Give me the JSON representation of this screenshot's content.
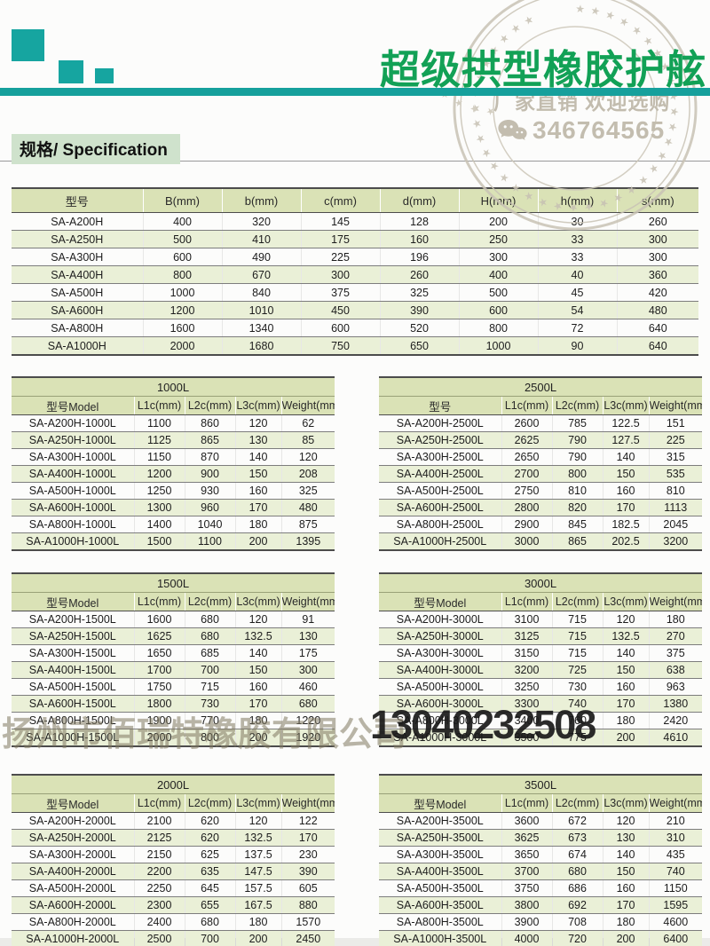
{
  "header": {
    "title": "超级拱型橡胶护舷",
    "slogan": "厂家直销 欢迎选购",
    "wechat_number": "346764565"
  },
  "section": {
    "label": "规格/ Specification"
  },
  "watermark": {
    "company": "扬州市佰瑞特橡胶有限公司",
    "phone": "13040232508"
  },
  "stamp": {
    "stars_outer": "★★★★★★★★★★★★★★★★★★★★★★★★★★★★★★★★★★★★★★",
    "stars_inner": "★★★★★★★★★★★★★★"
  },
  "colors": {
    "teal_accent": "#16a09c",
    "title_green": "#12a156",
    "table_header_bg": "#dae2b6",
    "row_alt_bg": "#eaf0d7",
    "section_bg": "#cfe2cc",
    "stamp_gray": "#c9c3b5"
  },
  "main_table": {
    "columns": [
      "型号",
      "B(mm)",
      "b(mm)",
      "c(mm)",
      "d(mm)",
      "H(mm)",
      "h(mm)",
      "s(mm)"
    ],
    "rows": [
      [
        "SA-A200H",
        "400",
        "320",
        "145",
        "128",
        "200",
        "30",
        "260"
      ],
      [
        "SA-A250H",
        "500",
        "410",
        "175",
        "160",
        "250",
        "33",
        "300"
      ],
      [
        "SA-A300H",
        "600",
        "490",
        "225",
        "196",
        "300",
        "33",
        "300"
      ],
      [
        "SA-A400H",
        "800",
        "670",
        "300",
        "260",
        "400",
        "40",
        "360"
      ],
      [
        "SA-A500H",
        "1000",
        "840",
        "375",
        "325",
        "500",
        "45",
        "420"
      ],
      [
        "SA-A600H",
        "1200",
        "1010",
        "450",
        "390",
        "600",
        "54",
        "480"
      ],
      [
        "SA-A800H",
        "1600",
        "1340",
        "600",
        "520",
        "800",
        "72",
        "640"
      ],
      [
        "SA-A1000H",
        "2000",
        "1680",
        "750",
        "650",
        "1000",
        "90",
        "640"
      ]
    ]
  },
  "sub_tables": [
    {
      "title": "1000L",
      "columns": [
        "型号Model",
        "L1c(mm)",
        "L2c(mm)",
        "L3c(mm)",
        "Weight(mm)"
      ],
      "rows": [
        [
          "SA-A200H-1000L",
          "1100",
          "860",
          "120",
          "62"
        ],
        [
          "SA-A250H-1000L",
          "1125",
          "865",
          "130",
          "85"
        ],
        [
          "SA-A300H-1000L",
          "1150",
          "870",
          "140",
          "120"
        ],
        [
          "SA-A400H-1000L",
          "1200",
          "900",
          "150",
          "208"
        ],
        [
          "SA-A500H-1000L",
          "1250",
          "930",
          "160",
          "325"
        ],
        [
          "SA-A600H-1000L",
          "1300",
          "960",
          "170",
          "480"
        ],
        [
          "SA-A800H-1000L",
          "1400",
          "1040",
          "180",
          "875"
        ],
        [
          "SA-A1000H-1000L",
          "1500",
          "1100",
          "200",
          "1395"
        ]
      ]
    },
    {
      "title": "2500L",
      "columns": [
        "型号",
        "L1c(mm)",
        "L2c(mm)",
        "L3c(mm)",
        "Weight(mm)"
      ],
      "rows": [
        [
          "SA-A200H-2500L",
          "2600",
          "785",
          "122.5",
          "151"
        ],
        [
          "SA-A250H-2500L",
          "2625",
          "790",
          "127.5",
          "225"
        ],
        [
          "SA-A300H-2500L",
          "2650",
          "790",
          "140",
          "315"
        ],
        [
          "SA-A400H-2500L",
          "2700",
          "800",
          "150",
          "535"
        ],
        [
          "SA-A500H-2500L",
          "2750",
          "810",
          "160",
          "810"
        ],
        [
          "SA-A600H-2500L",
          "2800",
          "820",
          "170",
          "1113"
        ],
        [
          "SA-A800H-2500L",
          "2900",
          "845",
          "182.5",
          "2045"
        ],
        [
          "SA-A1000H-2500L",
          "3000",
          "865",
          "202.5",
          "3200"
        ]
      ]
    },
    {
      "title": "1500L",
      "columns": [
        "型号Model",
        "L1c(mm)",
        "L2c(mm)",
        "L3c(mm)",
        "Weight(mm)"
      ],
      "rows": [
        [
          "SA-A200H-1500L",
          "1600",
          "680",
          "120",
          "91"
        ],
        [
          "SA-A250H-1500L",
          "1625",
          "680",
          "132.5",
          "130"
        ],
        [
          "SA-A300H-1500L",
          "1650",
          "685",
          "140",
          "175"
        ],
        [
          "SA-A400H-1500L",
          "1700",
          "700",
          "150",
          "300"
        ],
        [
          "SA-A500H-1500L",
          "1750",
          "715",
          "160",
          "460"
        ],
        [
          "SA-A600H-1500L",
          "1800",
          "730",
          "170",
          "680"
        ],
        [
          "SA-A800H-1500L",
          "1900",
          "770",
          "180",
          "1220"
        ],
        [
          "SA-A1000H-1500L",
          "2000",
          "800",
          "200",
          "1920"
        ]
      ]
    },
    {
      "title": "3000L",
      "columns": [
        "型号Model",
        "L1c(mm)",
        "L2c(mm)",
        "L3c(mm)",
        "Weight(mm)"
      ],
      "rows": [
        [
          "SA-A200H-3000L",
          "3100",
          "715",
          "120",
          "180"
        ],
        [
          "SA-A250H-3000L",
          "3125",
          "715",
          "132.5",
          "270"
        ],
        [
          "SA-A300H-3000L",
          "3150",
          "715",
          "140",
          "375"
        ],
        [
          "SA-A400H-3000L",
          "3200",
          "725",
          "150",
          "638"
        ],
        [
          "SA-A500H-3000L",
          "3250",
          "730",
          "160",
          "963"
        ],
        [
          "SA-A600H-3000L",
          "3300",
          "740",
          "170",
          "1380"
        ],
        [
          "SA-A800H-3000L",
          "3400",
          "760",
          "180",
          "2420"
        ],
        [
          "SA-A1000H-3000L",
          "3500",
          "775",
          "200",
          "4610"
        ]
      ]
    },
    {
      "title": "2000L",
      "columns": [
        "型号Model",
        "L1c(mm)",
        "L2c(mm)",
        "L3c(mm)",
        "Weight(mm)"
      ],
      "rows": [
        [
          "SA-A200H-2000L",
          "2100",
          "620",
          "120",
          "122"
        ],
        [
          "SA-A250H-2000L",
          "2125",
          "620",
          "132.5",
          "170"
        ],
        [
          "SA-A300H-2000L",
          "2150",
          "625",
          "137.5",
          "230"
        ],
        [
          "SA-A400H-2000L",
          "2200",
          "635",
          "147.5",
          "390"
        ],
        [
          "SA-A500H-2000L",
          "2250",
          "645",
          "157.5",
          "605"
        ],
        [
          "SA-A600H-2000L",
          "2300",
          "655",
          "167.5",
          "880"
        ],
        [
          "SA-A800H-2000L",
          "2400",
          "680",
          "180",
          "1570"
        ],
        [
          "SA-A1000H-2000L",
          "2500",
          "700",
          "200",
          "2450"
        ]
      ]
    },
    {
      "title": "3500L",
      "columns": [
        "型号Model",
        "L1c(mm)",
        "L2c(mm)",
        "L3c(mm)",
        "Weight(mm)"
      ],
      "rows": [
        [
          "SA-A200H-3500L",
          "3600",
          "672",
          "120",
          "210"
        ],
        [
          "SA-A250H-3500L",
          "3625",
          "673",
          "130",
          "310"
        ],
        [
          "SA-A300H-3500L",
          "3650",
          "674",
          "140",
          "435"
        ],
        [
          "SA-A400H-3500L",
          "3700",
          "680",
          "150",
          "740"
        ],
        [
          "SA-A500H-3500L",
          "3750",
          "686",
          "160",
          "1150"
        ],
        [
          "SA-A600H-3500L",
          "3800",
          "692",
          "170",
          "1595"
        ],
        [
          "SA-A800H-3500L",
          "3900",
          "708",
          "180",
          "4600"
        ],
        [
          "SA-A1000H-3500L",
          "4000",
          "720",
          "200",
          "6400"
        ]
      ]
    }
  ]
}
